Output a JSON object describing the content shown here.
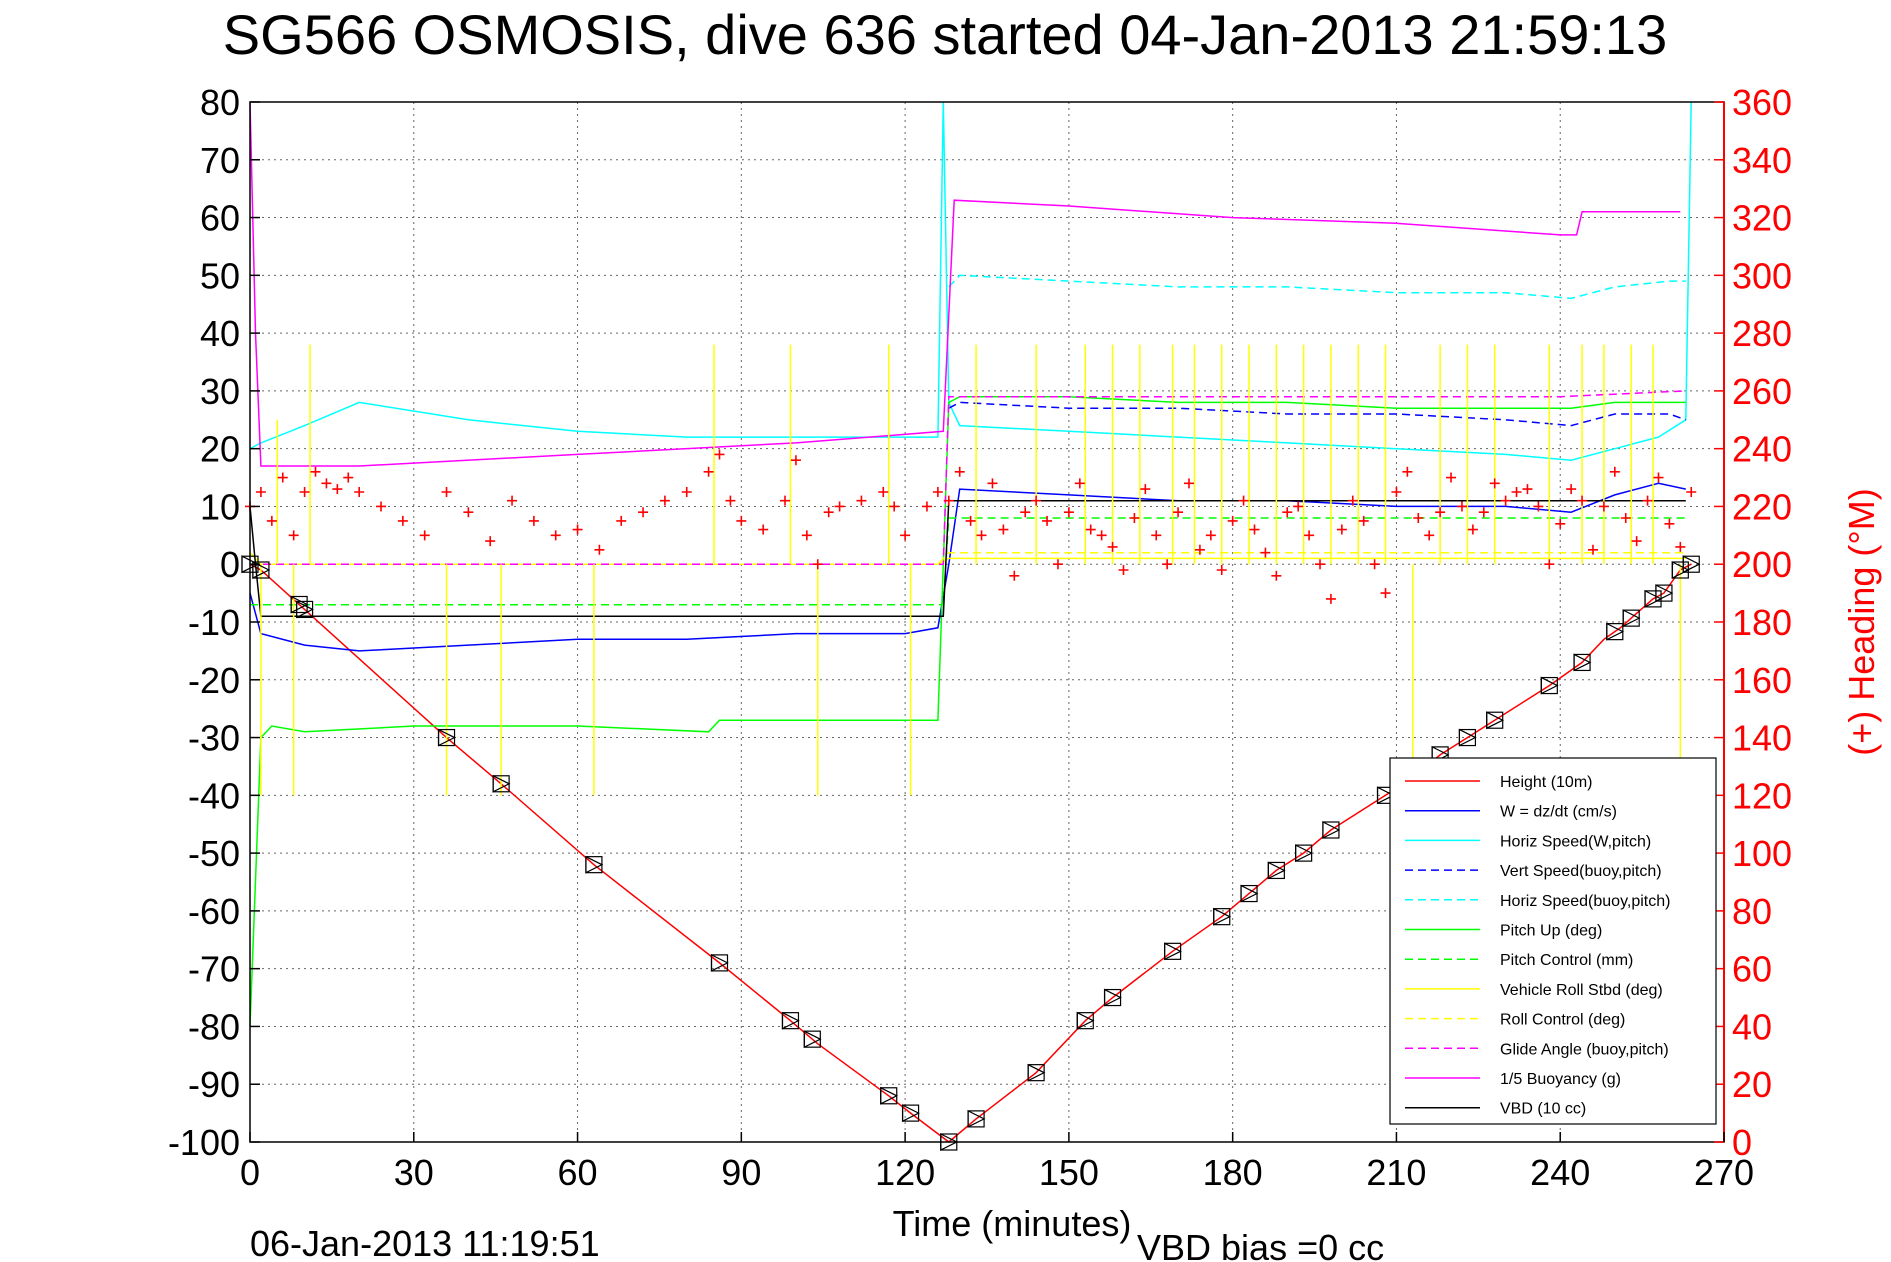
{
  "chart_data": {
    "type": "line",
    "title": "SG566 OSMOSIS, dive 636 started 04-Jan-2013 21:59:13",
    "xlabel": "Time (minutes)",
    "ylabel_right": "(+) Heading (°M)",
    "footer_left": "06-Jan-2013 11:19:51",
    "footer_right": "VBD bias =0 cc",
    "xlim": [
      0,
      270
    ],
    "ylim": [
      -100,
      80
    ],
    "ylim_right": [
      0,
      360
    ],
    "x_ticks": [
      0,
      30,
      60,
      90,
      120,
      150,
      180,
      210,
      240,
      270
    ],
    "y_ticks": [
      -100,
      -90,
      -80,
      -70,
      -60,
      -50,
      -40,
      -30,
      -20,
      -10,
      0,
      10,
      20,
      30,
      40,
      50,
      60,
      70,
      80
    ],
    "y_ticks_right": [
      0,
      20,
      40,
      60,
      80,
      100,
      120,
      140,
      160,
      180,
      200,
      220,
      240,
      260,
      280,
      300,
      320,
      340,
      360
    ],
    "grid": true,
    "legend_position": "bottom-right",
    "colors": {
      "height": "#ff0000",
      "w": "#0000ff",
      "horiz_speed": "#00ffff",
      "pitch": "#00ff00",
      "roll": "#ffff00",
      "glide": "#ff00ff",
      "vbd": "#000000",
      "heading": "#ff0000"
    },
    "series": [
      {
        "name": "Height (10m)",
        "color": "#ff0000",
        "dash": "solid",
        "x": [
          0,
          2,
          36,
          46,
          63,
          86,
          99,
          104,
          117,
          121,
          128,
          133,
          144,
          153,
          158,
          169,
          178,
          183,
          188,
          193,
          198,
          208,
          213,
          218,
          223,
          228,
          238,
          244,
          248,
          251,
          257,
          259,
          262,
          264
        ],
        "y": [
          0,
          -1,
          -30,
          -38,
          -52,
          -69,
          -79,
          -83,
          -92,
          -95,
          -100,
          -96,
          -88,
          -79,
          -75,
          -67,
          -61,
          -57,
          -53,
          -50,
          -46,
          -40,
          -37,
          -33,
          -30,
          -27,
          -21,
          -17,
          -13,
          -11,
          -6,
          -5,
          -1,
          0
        ]
      },
      {
        "name": "W = dz/dt (cm/s)",
        "color": "#0000ff",
        "dash": "solid",
        "x": [
          0,
          2,
          10,
          20,
          40,
          60,
          80,
          100,
          120,
          126,
          128,
          130,
          150,
          170,
          190,
          210,
          230,
          242,
          250,
          258,
          263
        ],
        "y": [
          -5,
          -12,
          -14,
          -15,
          -14,
          -13,
          -13,
          -12,
          -12,
          -11,
          0,
          13,
          12,
          11,
          11,
          10,
          10,
          9,
          12,
          14,
          13
        ]
      },
      {
        "name": "Horiz Speed(W,pitch)",
        "color": "#00ffff",
        "dash": "solid",
        "x": [
          0,
          2,
          10,
          20,
          40,
          60,
          80,
          100,
          120,
          126,
          127,
          128,
          130,
          150,
          170,
          190,
          210,
          230,
          242,
          250,
          258,
          263,
          264
        ],
        "y": [
          20,
          21,
          24,
          28,
          25,
          23,
          22,
          22,
          22,
          22,
          80,
          28,
          24,
          23,
          22,
          21,
          20,
          19,
          18,
          20,
          22,
          25,
          80
        ]
      },
      {
        "name": "Vert Speed(buoy,pitch)",
        "color": "#0000ff",
        "dash": "dashed",
        "x": [
          128,
          130,
          150,
          170,
          190,
          210,
          230,
          242,
          250,
          260,
          263
        ],
        "y": [
          27,
          28,
          27,
          27,
          26,
          26,
          25,
          24,
          26,
          26,
          25
        ]
      },
      {
        "name": "Horiz Speed(buoy,pitch)",
        "color": "#00ffff",
        "dash": "dashed",
        "x": [
          128,
          130,
          150,
          170,
          190,
          210,
          230,
          242,
          250,
          260,
          263
        ],
        "y": [
          48,
          50,
          49,
          48,
          48,
          47,
          47,
          46,
          48,
          49,
          49
        ]
      },
      {
        "name": "Pitch Up (deg)",
        "color": "#00ff00",
        "dash": "solid",
        "x": [
          0,
          2,
          4,
          10,
          30,
          60,
          84,
          86,
          100,
          120,
          126,
          127,
          128,
          130,
          150,
          170,
          190,
          210,
          230,
          242,
          250,
          263
        ],
        "y": [
          -80,
          -30,
          -28,
          -29,
          -28,
          -28,
          -29,
          -27,
          -27,
          -27,
          -27,
          0,
          28,
          29,
          29,
          28,
          28,
          27,
          27,
          27,
          28,
          28
        ]
      },
      {
        "name": "Pitch Control (mm)",
        "color": "#00ff00",
        "dash": "dashed",
        "x": [
          0,
          2,
          127,
          128,
          150,
          200,
          263
        ],
        "y": [
          -7,
          -7,
          -7,
          8,
          8,
          8,
          8
        ]
      },
      {
        "name": "Vehicle Roll Stbd (deg)",
        "color": "#ffff00",
        "dash": "solid",
        "x": [
          0,
          2,
          20,
          60,
          100,
          126,
          128,
          150,
          200,
          240,
          263
        ],
        "y": [
          2,
          0,
          0,
          0,
          0,
          0,
          1,
          1,
          1,
          1,
          1
        ]
      },
      {
        "name": "Roll Control (deg)",
        "color": "#ffff00",
        "dash": "dashed",
        "x": [
          0,
          2,
          20,
          60,
          100,
          126,
          128,
          150,
          200,
          240,
          263
        ],
        "y": [
          0,
          0,
          0,
          0,
          0,
          0,
          2,
          2,
          2,
          2,
          2
        ]
      },
      {
        "name": "Glide Angle (buoy,pitch)",
        "color": "#ff00ff",
        "dash": "dashed",
        "x": [
          0,
          2,
          127,
          128,
          150,
          200,
          240,
          263
        ],
        "y": [
          0,
          0,
          0,
          29,
          29,
          29,
          29,
          30
        ]
      },
      {
        "name": "1/5 Buoyancy (g)",
        "color": "#ff00ff",
        "dash": "solid",
        "x": [
          0,
          1,
          2,
          20,
          60,
          100,
          127,
          129,
          150,
          180,
          210,
          240,
          243,
          244,
          262
        ],
        "y": [
          80,
          40,
          17,
          17,
          19,
          21,
          23,
          63,
          62,
          60,
          59,
          57,
          57,
          61,
          61
        ]
      },
      {
        "name": "VBD (10 cc)",
        "color": "#000000",
        "dash": "solid",
        "x": [
          0,
          1,
          2,
          127,
          128,
          263
        ],
        "y": [
          10,
          0,
          -9,
          -9,
          11,
          11
        ]
      }
    ],
    "yellow_spikes": [
      {
        "x": 2,
        "y": -40
      },
      {
        "x": 5,
        "y": 25
      },
      {
        "x": 8,
        "y": -40
      },
      {
        "x": 11,
        "y": 38
      },
      {
        "x": 36,
        "y": -40
      },
      {
        "x": 46,
        "y": -40
      },
      {
        "x": 63,
        "y": -40
      },
      {
        "x": 85,
        "y": 38
      },
      {
        "x": 99,
        "y": 38
      },
      {
        "x": 104,
        "y": -40
      },
      {
        "x": 117,
        "y": 38
      },
      {
        "x": 121,
        "y": -40
      },
      {
        "x": 133,
        "y": 38
      },
      {
        "x": 144,
        "y": 38
      },
      {
        "x": 153,
        "y": 38
      },
      {
        "x": 158,
        "y": 38
      },
      {
        "x": 163,
        "y": 38
      },
      {
        "x": 169,
        "y": 38
      },
      {
        "x": 173,
        "y": 38
      },
      {
        "x": 178,
        "y": 38
      },
      {
        "x": 183,
        "y": 38
      },
      {
        "x": 188,
        "y": 38
      },
      {
        "x": 193,
        "y": 38
      },
      {
        "x": 198,
        "y": 38
      },
      {
        "x": 203,
        "y": 38
      },
      {
        "x": 208,
        "y": 38
      },
      {
        "x": 213,
        "y": -40
      },
      {
        "x": 218,
        "y": 38
      },
      {
        "x": 223,
        "y": 38
      },
      {
        "x": 228,
        "y": 38
      },
      {
        "x": 238,
        "y": 38
      },
      {
        "x": 244,
        "y": 38
      },
      {
        "x": 248,
        "y": 38
      },
      {
        "x": 253,
        "y": 38
      },
      {
        "x": 257,
        "y": 38
      },
      {
        "x": 262,
        "y": -40
      }
    ],
    "vbd_markers_x": [
      0,
      2,
      9,
      10,
      36,
      46,
      63,
      86,
      99,
      103,
      117,
      121,
      128,
      133,
      144,
      153,
      158,
      169,
      178,
      183,
      188,
      193,
      198,
      208,
      213,
      218,
      223,
      228,
      238,
      244,
      250,
      253,
      257,
      259,
      262,
      264
    ],
    "heading": {
      "name": "Heading",
      "marker": "+",
      "color": "#ff0000",
      "x": [
        0,
        2,
        4,
        6,
        8,
        10,
        12,
        14,
        16,
        18,
        20,
        24,
        28,
        32,
        36,
        40,
        44,
        48,
        52,
        56,
        60,
        64,
        68,
        72,
        76,
        80,
        84,
        86,
        88,
        90,
        94,
        98,
        100,
        102,
        104,
        106,
        108,
        112,
        116,
        118,
        120,
        124,
        126,
        128,
        130,
        132,
        134,
        136,
        138,
        140,
        142,
        144,
        146,
        148,
        150,
        152,
        154,
        156,
        158,
        160,
        162,
        164,
        166,
        168,
        170,
        172,
        174,
        176,
        178,
        180,
        182,
        184,
        186,
        188,
        190,
        192,
        194,
        196,
        198,
        200,
        202,
        204,
        206,
        208,
        210,
        212,
        214,
        216,
        218,
        220,
        222,
        224,
        226,
        228,
        230,
        232,
        234,
        236,
        238,
        240,
        242,
        244,
        246,
        248,
        250,
        252,
        254,
        256,
        258,
        260,
        262,
        264
      ],
      "y": [
        220,
        225,
        215,
        230,
        210,
        225,
        232,
        228,
        226,
        230,
        225,
        220,
        215,
        210,
        225,
        218,
        208,
        222,
        215,
        210,
        212,
        205,
        215,
        218,
        222,
        225,
        232,
        238,
        222,
        215,
        212,
        222,
        236,
        210,
        200,
        218,
        220,
        222,
        225,
        220,
        210,
        220,
        225,
        222,
        232,
        215,
        210,
        228,
        212,
        196,
        218,
        222,
        215,
        200,
        218,
        228,
        212,
        210,
        206,
        198,
        216,
        226,
        210,
        200,
        218,
        228,
        205,
        210,
        198,
        215,
        222,
        212,
        204,
        196,
        218,
        220,
        210,
        200,
        188,
        212,
        222,
        215,
        200,
        190,
        225,
        232,
        216,
        210,
        218,
        230,
        220,
        212,
        218,
        228,
        222,
        225,
        226,
        220,
        200,
        214,
        226,
        222,
        205,
        220,
        232,
        216,
        208,
        222,
        230,
        214,
        206,
        225
      ]
    }
  }
}
